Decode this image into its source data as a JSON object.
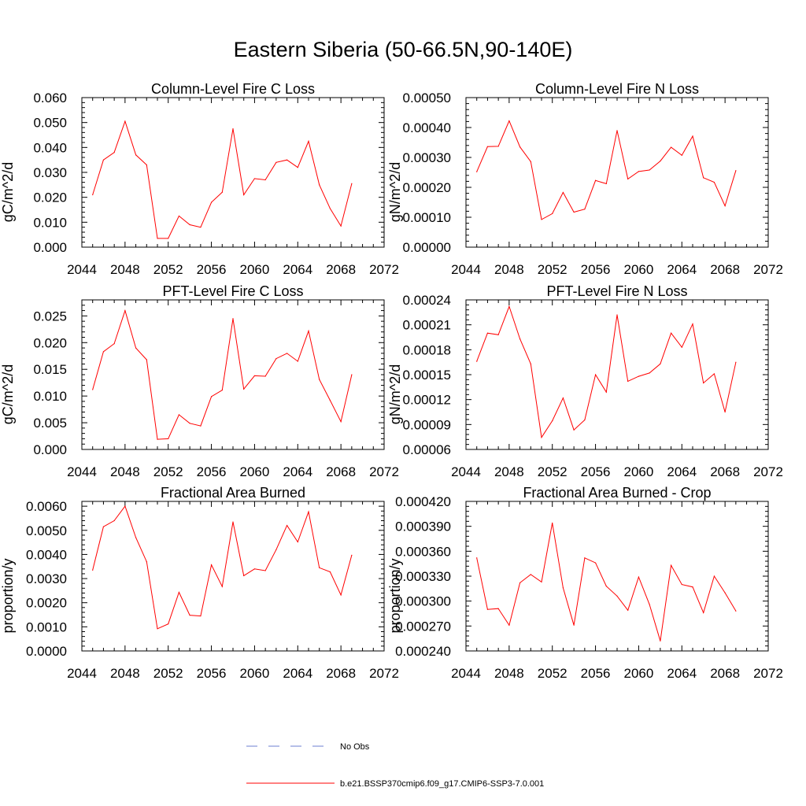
{
  "title": "Eastern Siberia (50-66.5N,90-140E)",
  "chart_data": [
    {
      "type": "line",
      "title": "Column-Level Fire C Loss",
      "ylabel": "gC/m^2/d",
      "xlim": [
        2044,
        2072
      ],
      "xticks": [
        "2044",
        "2048",
        "2052",
        "2056",
        "2060",
        "2064",
        "2068",
        "2072"
      ],
      "ylim": [
        0,
        0.06
      ],
      "yticks": [
        "0.000",
        "0.010",
        "0.020",
        "0.030",
        "0.040",
        "0.050",
        "0.060"
      ],
      "x": [
        2045,
        2046,
        2047,
        2048,
        2049,
        2050,
        2051,
        2052,
        2053,
        2054,
        2055,
        2056,
        2057,
        2058,
        2059,
        2060,
        2061,
        2062,
        2063,
        2064,
        2065,
        2066,
        2067,
        2068,
        2069
      ],
      "series": [
        {
          "color": "#ff0000",
          "values": [
            0.021,
            0.035,
            0.038,
            0.0505,
            0.037,
            0.033,
            0.0035,
            0.0035,
            0.0125,
            0.009,
            0.008,
            0.018,
            0.022,
            0.0475,
            0.021,
            0.0275,
            0.027,
            0.034,
            0.035,
            0.032,
            0.0425,
            0.025,
            0.0155,
            0.0085,
            0.0255
          ]
        }
      ]
    },
    {
      "type": "line",
      "title": "Column-Level Fire N Loss",
      "ylabel": "gN/m^2/d",
      "xlim": [
        2044,
        2072
      ],
      "xticks": [
        "2044",
        "2048",
        "2052",
        "2056",
        "2060",
        "2064",
        "2068",
        "2072"
      ],
      "ylim": [
        0,
        0.0005
      ],
      "yticks": [
        "0.00000",
        "0.00010",
        "0.00020",
        "0.00030",
        "0.00040",
        "0.00050"
      ],
      "x": [
        2045,
        2046,
        2047,
        2048,
        2049,
        2050,
        2051,
        2052,
        2053,
        2054,
        2055,
        2056,
        2057,
        2058,
        2059,
        2060,
        2061,
        2062,
        2063,
        2064,
        2065,
        2066,
        2067,
        2068,
        2069
      ],
      "series": [
        {
          "color": "#ff0000",
          "values": [
            0.000252,
            0.000336,
            0.000337,
            0.000422,
            0.000335,
            0.000286,
            9.25e-05,
            0.000112,
            0.000183,
            0.000117,
            0.000127,
            0.000223,
            0.000212,
            0.00039,
            0.000228,
            0.000253,
            0.000258,
            0.000288,
            0.000334,
            0.000307,
            0.000371,
            0.000232,
            0.000217,
            0.000138,
            0.000256
          ]
        }
      ]
    },
    {
      "type": "line",
      "title": "PFT-Level Fire C Loss",
      "ylabel": "gC/m^2/d",
      "xlim": [
        2044,
        2072
      ],
      "xticks": [
        "2044",
        "2048",
        "2052",
        "2056",
        "2060",
        "2064",
        "2068",
        "2072"
      ],
      "ylim": [
        0,
        0.028
      ],
      "yticks": [
        "0.000",
        "0.005",
        "0.010",
        "0.015",
        "0.020",
        "0.025"
      ],
      "ytickvals": [
        0,
        0.005,
        0.01,
        0.015,
        0.02,
        0.025
      ],
      "x": [
        2045,
        2046,
        2047,
        2048,
        2049,
        2050,
        2051,
        2052,
        2053,
        2054,
        2055,
        2056,
        2057,
        2058,
        2059,
        2060,
        2061,
        2062,
        2063,
        2064,
        2065,
        2066,
        2067,
        2068,
        2069
      ],
      "series": [
        {
          "color": "#ff0000",
          "values": [
            0.0112,
            0.0183,
            0.0198,
            0.026,
            0.019,
            0.0168,
            0.0019,
            0.002,
            0.0065,
            0.0049,
            0.0044,
            0.0099,
            0.0111,
            0.0245,
            0.0113,
            0.0138,
            0.0137,
            0.017,
            0.018,
            0.0165,
            0.0222,
            0.0131,
            0.0092,
            0.0052,
            0.014
          ]
        }
      ]
    },
    {
      "type": "line",
      "title": "PFT-Level Fire N Loss",
      "ylabel": "gN/m^2/d",
      "xlim": [
        2044,
        2072
      ],
      "xticks": [
        "2044",
        "2048",
        "2052",
        "2056",
        "2060",
        "2064",
        "2068",
        "2072"
      ],
      "ylim": [
        6e-05,
        0.00024
      ],
      "yticks": [
        "0.00006",
        "0.00009",
        "0.00012",
        "0.00015",
        "0.00018",
        "0.00021",
        "0.00024"
      ],
      "x": [
        2045,
        2046,
        2047,
        2048,
        2049,
        2050,
        2051,
        2052,
        2053,
        2054,
        2055,
        2056,
        2057,
        2058,
        2059,
        2060,
        2061,
        2062,
        2063,
        2064,
        2065,
        2066,
        2067,
        2068,
        2069
      ],
      "series": [
        {
          "color": "#ff0000",
          "values": [
            0.000166,
            0.0002,
            0.000198,
            0.000232,
            0.000193,
            0.000163,
            7.45e-05,
            9.45e-05,
            0.000122,
            8.35e-05,
            9.55e-05,
            0.00015,
            0.000129,
            0.000222,
            0.000142,
            0.000148,
            0.000152,
            0.000163,
            0.0002,
            0.000183,
            0.000211,
            0.00014,
            0.000151,
            0.000105,
            0.000165
          ]
        }
      ]
    },
    {
      "type": "line",
      "title": "Fractional Area Burned",
      "ylabel": "proportion/y",
      "xlim": [
        2044,
        2072
      ],
      "xticks": [
        "2044",
        "2048",
        "2052",
        "2056",
        "2060",
        "2064",
        "2068",
        "2072"
      ],
      "ylim": [
        0,
        0.0062
      ],
      "yticks": [
        "0.0000",
        "0.0010",
        "0.0020",
        "0.0030",
        "0.0040",
        "0.0050",
        "0.0060"
      ],
      "ytickvals": [
        0,
        0.001,
        0.002,
        0.003,
        0.004,
        0.005,
        0.006
      ],
      "x": [
        2045,
        2046,
        2047,
        2048,
        2049,
        2050,
        2051,
        2052,
        2053,
        2054,
        2055,
        2056,
        2057,
        2058,
        2059,
        2060,
        2061,
        2062,
        2063,
        2064,
        2065,
        2066,
        2067,
        2068,
        2069
      ],
      "series": [
        {
          "color": "#ff0000",
          "values": [
            0.00335,
            0.00515,
            0.0054,
            0.006,
            0.0047,
            0.0037,
            0.00092,
            0.00112,
            0.00243,
            0.00148,
            0.00145,
            0.00357,
            0.00267,
            0.00535,
            0.00312,
            0.0034,
            0.00333,
            0.0042,
            0.0052,
            0.00452,
            0.00577,
            0.00345,
            0.00328,
            0.00232,
            0.00397
          ]
        }
      ]
    },
    {
      "type": "line",
      "title": "Fractional Area Burned - Crop",
      "ylabel": "proportion/y",
      "xlim": [
        2044,
        2072
      ],
      "xticks": [
        "2044",
        "2048",
        "2052",
        "2056",
        "2060",
        "2064",
        "2068",
        "2072"
      ],
      "ylim": [
        0.00024,
        0.00042
      ],
      "yticks": [
        "0.000240",
        "0.000270",
        "0.000300",
        "0.000330",
        "0.000360",
        "0.000390",
        "0.000420"
      ],
      "x": [
        2045,
        2046,
        2047,
        2048,
        2049,
        2050,
        2051,
        2052,
        2053,
        2054,
        2055,
        2056,
        2057,
        2058,
        2059,
        2060,
        2061,
        2062,
        2063,
        2064,
        2065,
        2066,
        2067,
        2068,
        2069
      ],
      "series": [
        {
          "color": "#ff0000",
          "values": [
            0.000352,
            0.00029,
            0.000291,
            0.000271,
            0.000322,
            0.000332,
            0.000323,
            0.000394,
            0.000316,
            0.000271,
            0.000352,
            0.000346,
            0.000318,
            0.000306,
            0.000289,
            0.000329,
            0.000296,
            0.000252,
            0.000343,
            0.00032,
            0.000317,
            0.000286,
            0.00033,
            0.00031,
            0.000288
          ]
        }
      ]
    }
  ],
  "legend": [
    {
      "label": "No Obs",
      "color": "#6e7fd0",
      "dash": true
    },
    {
      "label": "b.e21.BSSP370cmip6.f09_g17.CMIP6-SSP3-7.0.001",
      "color": "#ff0000",
      "dash": false
    }
  ]
}
